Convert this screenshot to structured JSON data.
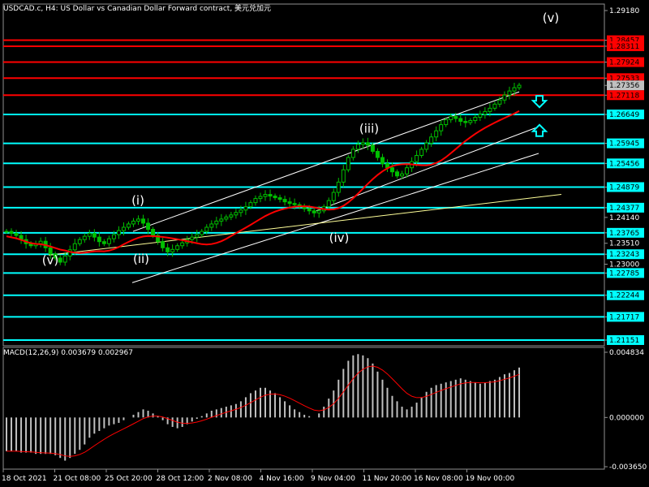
{
  "header": {
    "title": "USDCAD.c, H4:  US Dollar vs Canadian Dollar Forward contract, 美元兑加元"
  },
  "macd": {
    "label": "MACD(12,26,9) 0.003679 0.002967",
    "ticks": [
      "0.004834",
      "0.000000",
      "-0.003650"
    ],
    "histogram_color": "#c0c0c0",
    "signal_color": "#ff0000"
  },
  "colors": {
    "background": "#000000",
    "candles": "#00c000",
    "resistance_line": "#ff0000",
    "support_line": "#00ffff",
    "channel": "#ffffff",
    "moving_average": "#ff0000",
    "trendline": "#ffff99",
    "arrows": "#00ffff"
  },
  "chart_data": {
    "type": "candlestick",
    "symbol": "USDCAD.c",
    "timeframe": "H4",
    "current_price": "1.27356",
    "y_ticks": [
      "1.29180",
      "1.28457",
      "1.28311",
      "1.27924",
      "1.27533",
      "1.27356",
      "1.27118",
      "1.26649",
      "1.25945",
      "1.25456",
      "1.24879",
      "1.24377",
      "1.24140",
      "1.23765",
      "1.23510",
      "1.23243",
      "1.23000",
      "1.22785",
      "1.22244",
      "1.21717",
      "1.21151"
    ],
    "x_ticks": [
      "18 Oct 2021",
      "21 Oct 08:00",
      "25 Oct 20:00",
      "28 Oct 12:00",
      "2 Nov 08:00",
      "4 Nov 16:00",
      "9 Nov 04:00",
      "11 Nov 20:00",
      "16 Nov 08:00",
      "19 Nov 00:00"
    ],
    "red_levels": [
      "1.28457",
      "1.28311",
      "1.27924",
      "1.27533",
      "1.27118"
    ],
    "cyan_levels": [
      "1.26649",
      "1.25945",
      "1.25456",
      "1.24879",
      "1.24377",
      "1.23765",
      "1.23243",
      "1.22785",
      "1.22244",
      "1.21717",
      "1.21151"
    ],
    "wave_labels": [
      "(i)",
      "(ii)",
      "(iii)",
      "(iv)",
      "(v)",
      "(v)"
    ],
    "price_series": [
      1.238,
      1.2375,
      1.237,
      1.236,
      1.235,
      1.2345,
      1.235,
      1.2356,
      1.234,
      1.2325,
      1.2315,
      1.2305,
      1.232,
      1.2335,
      1.235,
      1.236,
      1.2368,
      1.2375,
      1.2366,
      1.2355,
      1.235,
      1.2362,
      1.2372,
      1.2382,
      1.239,
      1.2398,
      1.2405,
      1.241,
      1.24,
      1.2385,
      1.237,
      1.2355,
      1.234,
      1.233,
      1.2336,
      1.2345,
      1.2352,
      1.236,
      1.2366,
      1.2372,
      1.238,
      1.239,
      1.2398,
      1.2405,
      1.241,
      1.2415,
      1.242,
      1.2426,
      1.2432,
      1.244,
      1.245,
      1.246,
      1.2465,
      1.247,
      1.2466,
      1.2462,
      1.2458,
      1.2452,
      1.2448,
      1.2445,
      1.244,
      1.2435,
      1.243,
      1.2425,
      1.243,
      1.244,
      1.2455,
      1.2475,
      1.25,
      1.253,
      1.256,
      1.258,
      1.2592,
      1.2596,
      1.259,
      1.2575,
      1.256,
      1.2545,
      1.2535,
      1.2525,
      1.2515,
      1.252,
      1.2535,
      1.255,
      1.2565,
      1.258,
      1.2595,
      1.261,
      1.2625,
      1.264,
      1.2652,
      1.266,
      1.2655,
      1.2648,
      1.2645,
      1.265,
      1.2658,
      1.2665,
      1.2672,
      1.268,
      1.269,
      1.27,
      1.2712,
      1.2722,
      1.273,
      1.2736
    ],
    "macd_histogram": [
      -0.0025,
      -0.0025,
      -0.0025,
      -0.0026,
      -0.0026,
      -0.0026,
      -0.0027,
      -0.0027,
      -0.0027,
      -0.0027,
      -0.0028,
      -0.003,
      -0.0032,
      -0.003,
      -0.0027,
      -0.0024,
      -0.002,
      -0.0015,
      -0.0012,
      -0.001,
      -0.0008,
      -0.0006,
      -0.0005,
      -0.0004,
      -0.0002,
      0.0,
      0.0002,
      0.0004,
      0.0006,
      0.0005,
      0.0003,
      0.0001,
      -0.0002,
      -0.0005,
      -0.0007,
      -0.0008,
      -0.0007,
      -0.0005,
      -0.0003,
      -0.0001,
      0.0001,
      0.0003,
      0.0005,
      0.0006,
      0.0007,
      0.0008,
      0.0009,
      0.001,
      0.0012,
      0.0015,
      0.0018,
      0.002,
      0.0022,
      0.0022,
      0.002,
      0.0018,
      0.0015,
      0.0012,
      0.0009,
      0.0006,
      0.0004,
      0.0002,
      0.0001,
      0.0,
      0.0003,
      0.0008,
      0.0014,
      0.002,
      0.0028,
      0.0036,
      0.0042,
      0.0046,
      0.0047,
      0.0046,
      0.0044,
      0.004,
      0.0034,
      0.0028,
      0.0022,
      0.0016,
      0.0012,
      0.0008,
      0.0006,
      0.0008,
      0.0011,
      0.0015,
      0.0019,
      0.0022,
      0.0024,
      0.0025,
      0.0026,
      0.0027,
      0.0028,
      0.0029,
      0.0028,
      0.0027,
      0.0026,
      0.0025,
      0.0026,
      0.0027,
      0.0028,
      0.003,
      0.0032,
      0.0033,
      0.0035,
      0.0037
    ]
  }
}
